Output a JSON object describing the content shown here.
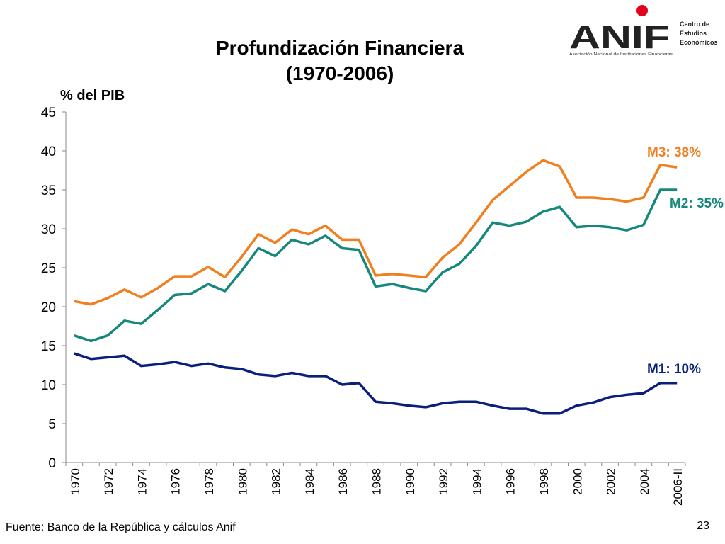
{
  "title_line1": "Profundización Financiera",
  "title_line2": "(1970-2006)",
  "footer": "Fuente: Banco de la República y cálculos Anif",
  "page_number": "23",
  "logo": {
    "wordmark": "ANIF",
    "subtitle": "Asociación Nacional de Instituciones Financieras",
    "side_text": [
      "Centro de",
      "Estudios",
      "Económicos"
    ],
    "accent_color": "#e3001b"
  },
  "chart_data": {
    "type": "line",
    "ylabel": "% del PIB",
    "ylim": [
      0,
      45
    ],
    "yticks": [
      0,
      5,
      10,
      15,
      20,
      25,
      30,
      35,
      40,
      45
    ],
    "x": [
      "1970",
      "1971",
      "1972",
      "1973",
      "1974",
      "1975",
      "1976",
      "1977",
      "1978",
      "1979",
      "1980",
      "1981",
      "1982",
      "1983",
      "1984",
      "1985",
      "1986",
      "1987",
      "1988",
      "1989",
      "1990",
      "1991",
      "1992",
      "1993",
      "1994",
      "1995",
      "1996",
      "1997",
      "1998",
      "1999",
      "2000",
      "2001",
      "2002",
      "2003",
      "2004",
      "2005",
      "2006-II"
    ],
    "xtick_labels": [
      "1970",
      "1972",
      "1974",
      "1976",
      "1978",
      "1980",
      "1982",
      "1984",
      "1986",
      "1988",
      "1990",
      "1992",
      "1994",
      "1996",
      "1998",
      "2000",
      "2002",
      "2004",
      "2006-II"
    ],
    "series": [
      {
        "label": "M3: 38%",
        "color": "#f07f1f",
        "values": [
          20.7,
          20.3,
          21.1,
          22.2,
          21.2,
          22.4,
          23.9,
          23.9,
          25.1,
          23.8,
          26.4,
          29.3,
          28.2,
          29.9,
          29.3,
          30.4,
          28.6,
          28.6,
          24.0,
          24.2,
          24.0,
          23.8,
          26.3,
          28.0,
          30.8,
          33.7,
          35.5,
          37.3,
          38.8,
          38.0,
          34.0,
          34.0,
          33.8,
          33.5,
          34.0,
          38.2,
          37.9
        ]
      },
      {
        "label": "M2: 35%",
        "color": "#16877b",
        "values": [
          16.3,
          15.6,
          16.3,
          18.2,
          17.8,
          19.6,
          21.5,
          21.7,
          22.9,
          22.0,
          24.6,
          27.5,
          26.5,
          28.6,
          28.0,
          29.1,
          27.5,
          27.3,
          22.6,
          22.9,
          22.4,
          22.0,
          24.4,
          25.5,
          27.8,
          30.8,
          30.4,
          30.9,
          32.2,
          32.8,
          30.2,
          30.4,
          30.2,
          29.8,
          30.5,
          35.0,
          35.0
        ]
      },
      {
        "label": "M1: 10%",
        "color": "#0a1f7c",
        "values": [
          14.0,
          13.3,
          13.5,
          13.7,
          12.4,
          12.6,
          12.9,
          12.4,
          12.7,
          12.2,
          12.0,
          11.3,
          11.1,
          11.5,
          11.1,
          11.1,
          10.0,
          10.2,
          7.8,
          7.6,
          7.3,
          7.1,
          7.6,
          7.8,
          7.8,
          7.3,
          6.9,
          6.9,
          6.3,
          6.3,
          7.3,
          7.7,
          8.4,
          8.7,
          8.9,
          10.2,
          10.2
        ]
      }
    ]
  }
}
